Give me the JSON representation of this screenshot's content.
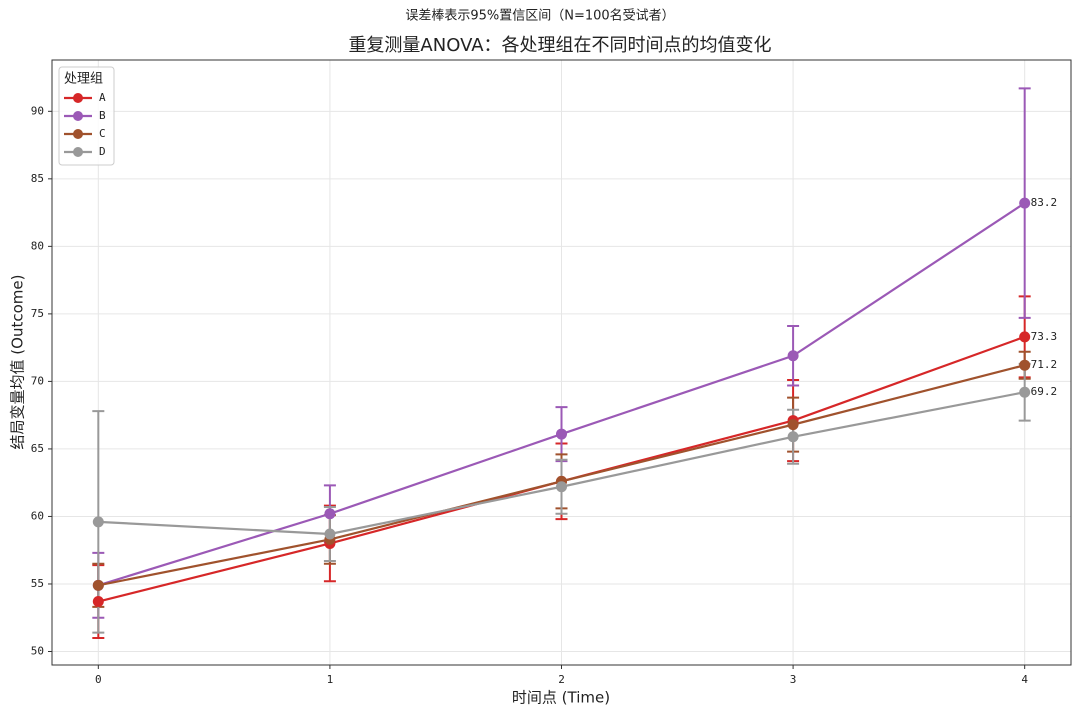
{
  "chart_data": {
    "type": "errorbar_line",
    "subtitle": "误差棒表示95%置信区间（N=100名受试者）",
    "title": "重复测量ANOVA：各处理组在不同时间点的均值变化",
    "x_label": "时间点 (Time)",
    "y_label": "结局变量均值 (Outcome)",
    "legend_title": "处理组",
    "legend": "upper left",
    "grid": true,
    "x": [
      0,
      1,
      2,
      3,
      4
    ],
    "xlim": [
      -0.2,
      4.2
    ],
    "xticks": [
      0,
      1,
      2,
      3,
      4
    ],
    "ylim": [
      49.0,
      93.8
    ],
    "yticks": [
      50,
      55,
      60,
      65,
      70,
      75,
      80,
      85,
      90
    ],
    "series": [
      {
        "name": "A",
        "color": "#d62728",
        "values": [
          53.7,
          58.0,
          62.6,
          67.1,
          73.3
        ],
        "errors": [
          2.7,
          2.8,
          2.8,
          3.0,
          3.0
        ]
      },
      {
        "name": "B",
        "color": "#9b59b6",
        "values": [
          54.9,
          60.2,
          66.1,
          71.9,
          83.2
        ],
        "errors": [
          2.4,
          2.1,
          2.0,
          2.2,
          8.5
        ]
      },
      {
        "name": "C",
        "color": "#a0522d",
        "values": [
          54.9,
          58.3,
          62.6,
          66.8,
          71.2
        ],
        "errors": [
          1.6,
          1.8,
          2.0,
          2.0,
          1.0
        ]
      },
      {
        "name": "D",
        "color": "#999999",
        "values": [
          59.6,
          58.7,
          62.2,
          65.9,
          69.2
        ],
        "errors": [
          8.2,
          2.0,
          2.0,
          2.0,
          2.1
        ]
      }
    ]
  }
}
